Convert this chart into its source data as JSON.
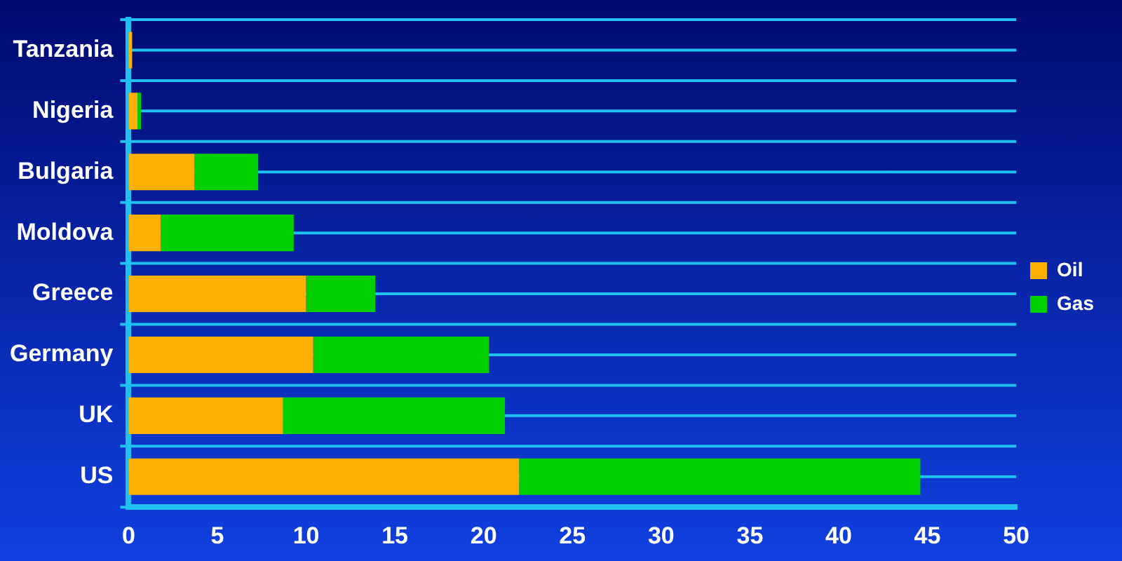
{
  "chart_data": {
    "type": "bar",
    "orientation": "horizontal",
    "stacked": true,
    "categories": [
      "Tanzania",
      "Nigeria",
      "Bulgaria",
      "Moldova",
      "Greece",
      "Germany",
      "UK",
      "US"
    ],
    "series": [
      {
        "name": "Oil",
        "color": "#ffb000",
        "values": [
          0.2,
          0.5,
          3.7,
          1.8,
          10,
          10.4,
          8.7,
          22
        ]
      },
      {
        "name": "Gas",
        "color": "#00d000",
        "values": [
          null,
          0.2,
          3.6,
          7.5,
          3.9,
          9.9,
          12.5,
          22.6
        ]
      }
    ],
    "xlim": [
      0,
      50
    ],
    "xticks": [
      0,
      5,
      10,
      15,
      20,
      25,
      30,
      35,
      40,
      45,
      50
    ],
    "grid": "y",
    "legend": "right"
  }
}
